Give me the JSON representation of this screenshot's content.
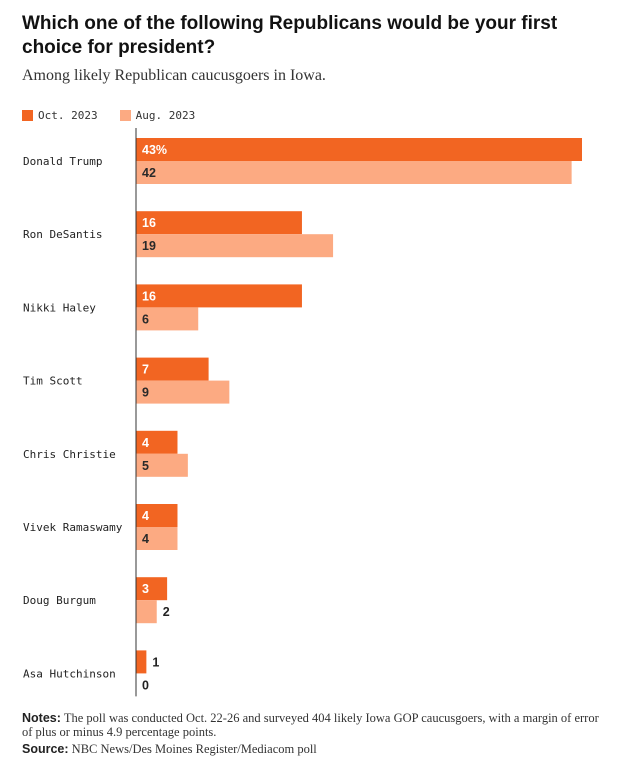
{
  "chart_data": {
    "type": "bar",
    "orientation": "horizontal",
    "title": "Which one of the following Republicans would be your first choice for president?",
    "subtitle": "Among likely Republican caucusgoers in Iowa.",
    "categories": [
      "Donald Trump",
      "Ron DeSantis",
      "Nikki Haley",
      "Tim Scott",
      "Chris Christie",
      "Vivek Ramaswamy",
      "Doug Burgum",
      "Asa Hutchinson"
    ],
    "series": [
      {
        "name": "Oct. 2023",
        "color": "#f26522",
        "values": [
          43,
          16,
          16,
          7,
          4,
          4,
          3,
          1
        ],
        "labels": [
          "43%",
          "16",
          "16",
          "7",
          "4",
          "4",
          "3",
          "1"
        ]
      },
      {
        "name": "Aug. 2023",
        "color": "#fcaa82",
        "values": [
          42,
          19,
          6,
          9,
          5,
          4,
          2,
          0
        ],
        "labels": [
          "42",
          "19",
          "6",
          "9",
          "5",
          "4",
          "2",
          "0"
        ]
      }
    ],
    "xlim": [
      0,
      43
    ],
    "legend_position": "top-left",
    "grid": false,
    "axis_line": "left"
  },
  "notes": {
    "label": "Notes:",
    "text": "The poll was conducted Oct. 22-26 and surveyed 404 likely Iowa GOP caucusgoers, with a margin of error of plus or minus 4.9 percentage points."
  },
  "source": {
    "label": "Source:",
    "text": "NBC News/Des Moines Register/Mediacom poll"
  }
}
